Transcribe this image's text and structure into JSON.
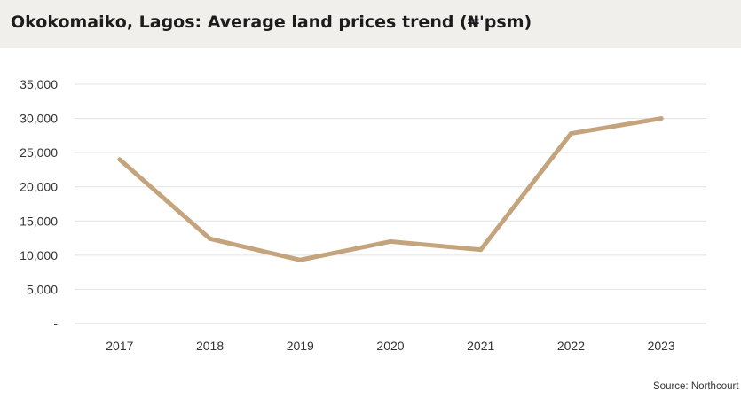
{
  "header": {
    "title": "Okokomaiko, Lagos: Average land prices trend  (₦'psm)"
  },
  "footer": {
    "source": "Source: Northcourt"
  },
  "chart_data": {
    "type": "line",
    "title": "Okokomaiko, Lagos: Average land prices trend  (₦'psm)",
    "xlabel": "",
    "ylabel": "",
    "categories": [
      "2017",
      "2018",
      "2019",
      "2020",
      "2021",
      "2022",
      "2023"
    ],
    "series": [
      {
        "values": [
          24000,
          12400,
          9300,
          12000,
          10800,
          27800,
          30000
        ]
      }
    ],
    "ylim": [
      0,
      35000
    ],
    "yticks": [
      0,
      5000,
      10000,
      15000,
      20000,
      25000,
      30000,
      35000
    ],
    "ytick_labels": [
      "-",
      "5,000",
      "10,000",
      "15,000",
      "20,000",
      "25,000",
      "30,000",
      "35,000"
    ],
    "grid": true,
    "legend": "none",
    "line_color": "#c4a47c",
    "grid_color": "#e3e3e3",
    "header_background": "#f1efec"
  }
}
